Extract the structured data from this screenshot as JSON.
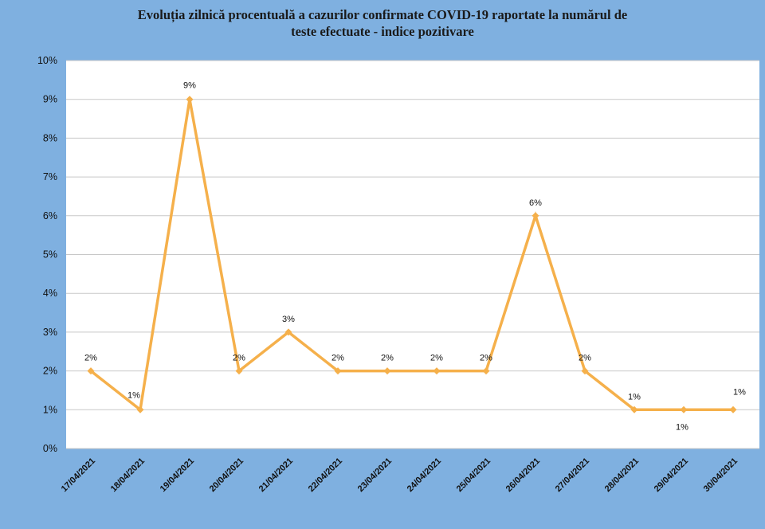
{
  "chart_data": {
    "type": "line",
    "title_lines": [
      "Evoluția zilnică procentuală a cazurilor confirmate COVID-19 raportate la numărul de",
      "teste efectuate - indice pozitivare"
    ],
    "categories": [
      "17/04/2021",
      "18/04/2021",
      "19/04/2021",
      "20/04/2021",
      "21/04/2021",
      "22/04/2021",
      "23/04/2021",
      "24/04/2021",
      "25/04/2021",
      "26/04/2021",
      "27/04/2021",
      "28/04/2021",
      "29/04/2021",
      "30/04/2021"
    ],
    "values": [
      2,
      1,
      9,
      2,
      3,
      2,
      2,
      2,
      2,
      6,
      2,
      1,
      1,
      1
    ],
    "data_labels": [
      "2%",
      "1%",
      "9%",
      "2%",
      "3%",
      "2%",
      "2%",
      "2%",
      "2%",
      "6%",
      "2%",
      "1%",
      "1%",
      "1%"
    ],
    "y_tick_labels": [
      "0%",
      "1%",
      "2%",
      "3%",
      "4%",
      "5%",
      "6%",
      "7%",
      "8%",
      "9%",
      "10%"
    ],
    "ylim": [
      0,
      10
    ],
    "grid": true,
    "legend": "none",
    "colors": {
      "background": "#7fb0e0",
      "plot_area": "#ffffff",
      "line": "#f5b04b",
      "gridline": "#c8c8c8"
    }
  }
}
